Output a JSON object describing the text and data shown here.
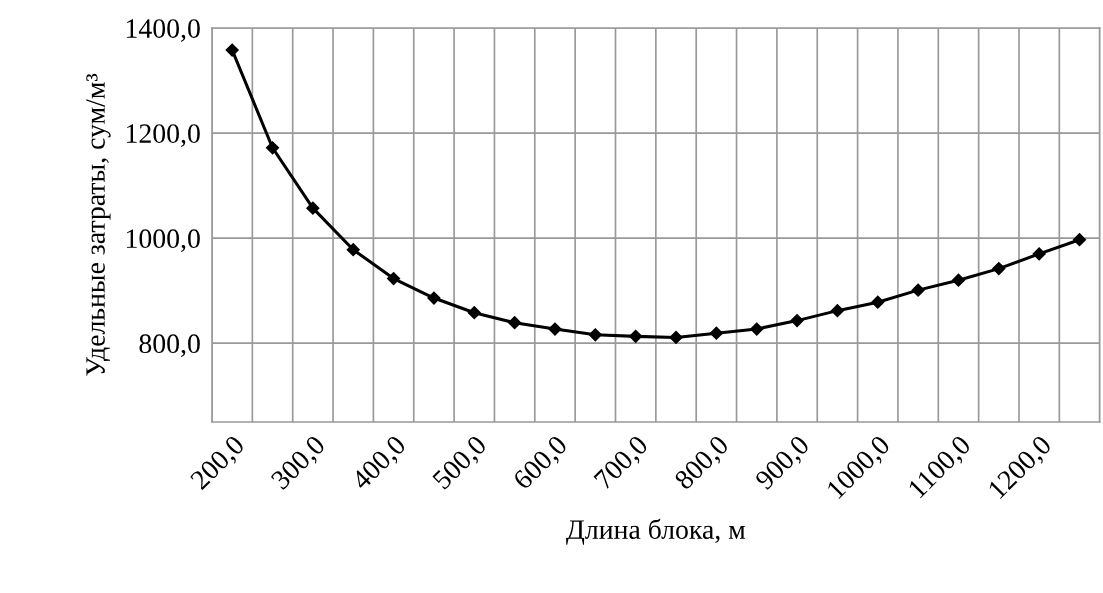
{
  "chart_data": {
    "type": "line",
    "xlabel": "Длина блока, м",
    "ylabel": "Удельные затраты, сум/м³",
    "categories": [
      "200,0",
      null,
      "300,0",
      null,
      "400,0",
      null,
      "500,0",
      null,
      "600,0",
      null,
      "700,0",
      null,
      "800,0",
      null,
      "900,0",
      null,
      "1000,0",
      null,
      "1100,0",
      null,
      "1200,0",
      null
    ],
    "series": [
      {
        "color": "#000000",
        "values": [
          1358,
          1172,
          1057,
          978,
          923,
          886,
          858,
          839,
          827,
          816,
          813,
          811,
          819,
          827,
          843,
          862,
          878,
          901,
          920,
          942,
          970,
          997
        ]
      }
    ],
    "ylim": [
      650,
      1400
    ],
    "yticks": [
      {
        "value": 800,
        "label": "800,0"
      },
      {
        "value": 1000,
        "label": "1000,0"
      },
      {
        "value": 1200,
        "label": "1200,0"
      },
      {
        "value": 1400,
        "label": "1400,0"
      }
    ],
    "grid": true,
    "marker": "diamond",
    "line_style": "solid",
    "legend": false
  }
}
